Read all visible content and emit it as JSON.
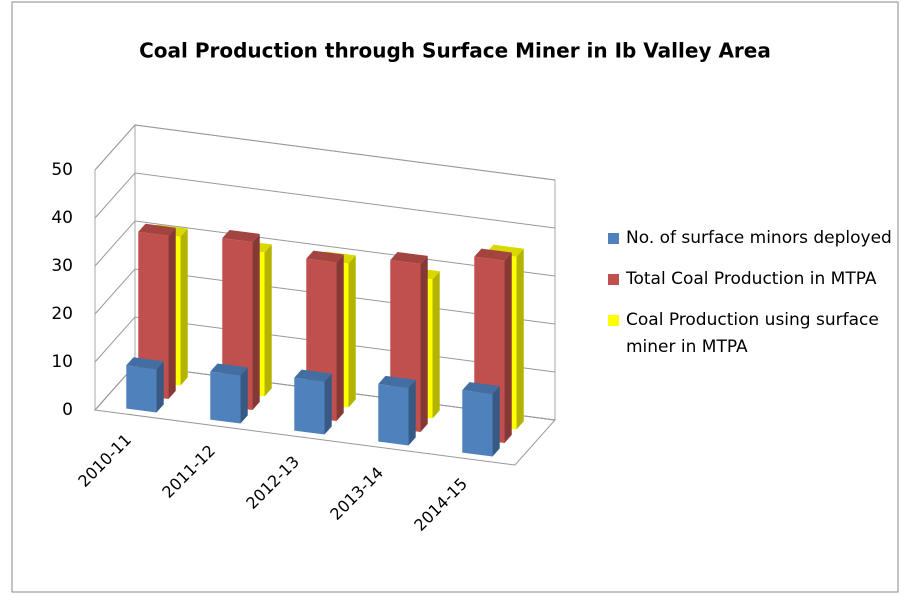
{
  "chart_data": {
    "type": "bar3d",
    "title": "Coal Production  through Surface Miner in  Ib Valley Area",
    "categories": [
      "2010-11",
      "2011-12",
      "2012-13",
      "2013-14",
      "2014-15"
    ],
    "series": [
      {
        "name": "No. of surface minors deployed",
        "color": "#4f81bd",
        "values": [
          9,
          10,
          11,
          12,
          13
        ]
      },
      {
        "name": "Total Coal Production in MTPA",
        "color": "#c0504d",
        "values": [
          34,
          35,
          33,
          35,
          38
        ]
      },
      {
        "name": "Coal Production using surface miner in MTPA",
        "color": "#ffff00",
        "values": [
          31,
          30,
          30,
          29,
          36
        ]
      }
    ],
    "ylim": [
      0,
      50
    ],
    "yticks": [
      0,
      10,
      20,
      30,
      40,
      50
    ],
    "grid": true,
    "legend": "right"
  }
}
